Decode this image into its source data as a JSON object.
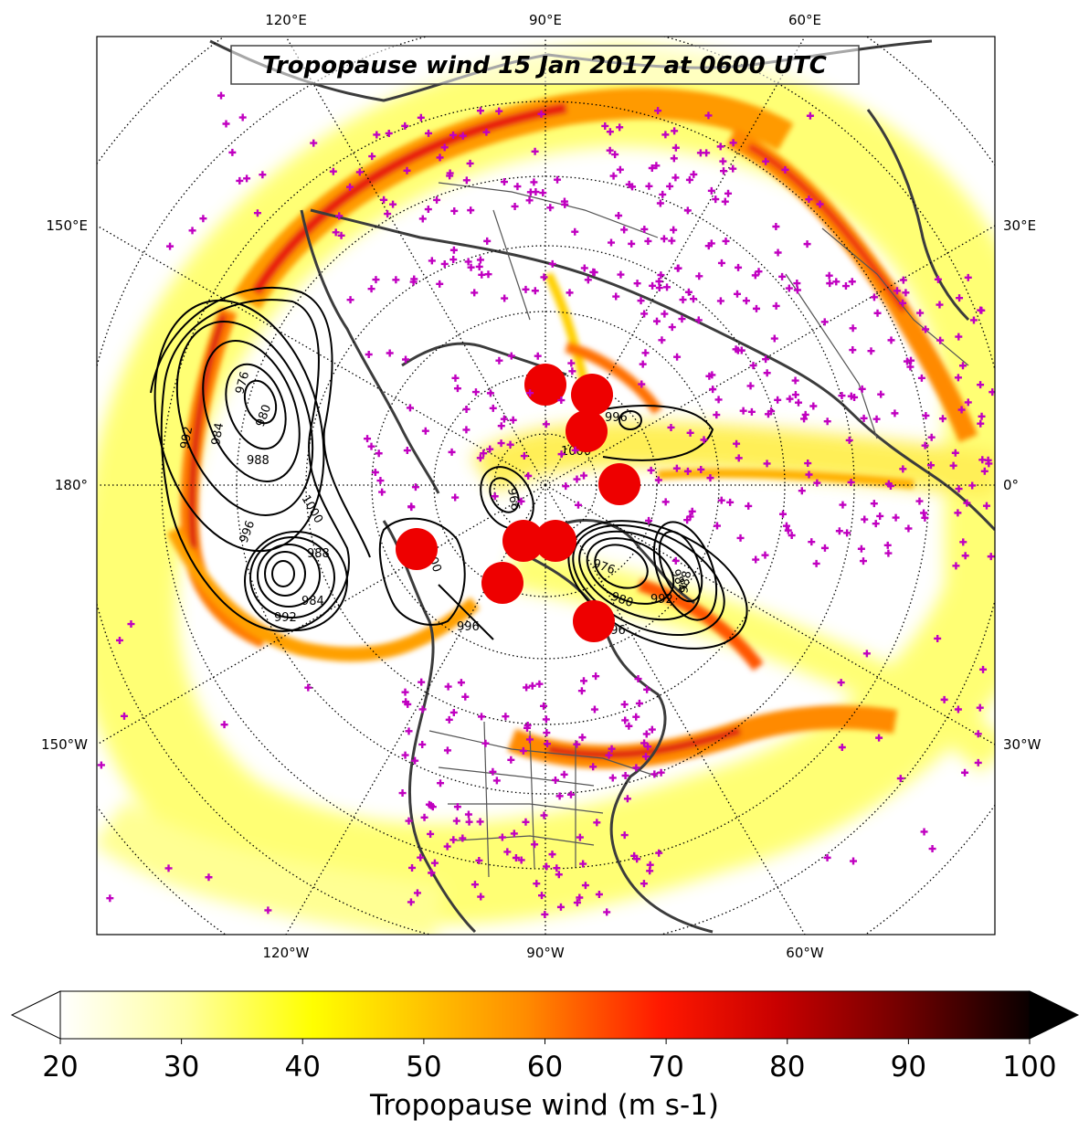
{
  "title": "Tropopause wind 15 Jan 2017 at 0600 UTC",
  "top_lon_labels": [
    "120°E",
    "90°E",
    "60°E"
  ],
  "bottom_lon_labels": [
    "120°W",
    "90°W",
    "60°W"
  ],
  "left_lon_labels": [
    "150°E",
    "180°",
    "150°W"
  ],
  "right_lon_labels": [
    "30°E",
    "0°",
    "30°W"
  ],
  "contour_labels": [
    "976",
    "980",
    "984",
    "988",
    "992",
    "996",
    "1000",
    "966",
    "996",
    "1000",
    "988",
    "984",
    "992",
    "996",
    "976",
    "980",
    "984",
    "988",
    "992",
    "996",
    "1000"
  ],
  "colorbar": {
    "label": "Tropopause wind (m s-1)",
    "ticks": [
      "20",
      "30",
      "40",
      "50",
      "60",
      "70",
      "80",
      "90",
      "100"
    ],
    "min": 20,
    "max": 100,
    "extend": "both",
    "colormap": "hot_r"
  },
  "colors": {
    "coast": "#3c3c3c",
    "station_marker": "#c000c0",
    "red_marker": "#ee0000",
    "jet_yellow": "#ffee33",
    "jet_orange": "#ff8800",
    "jet_red": "#e01010"
  }
}
